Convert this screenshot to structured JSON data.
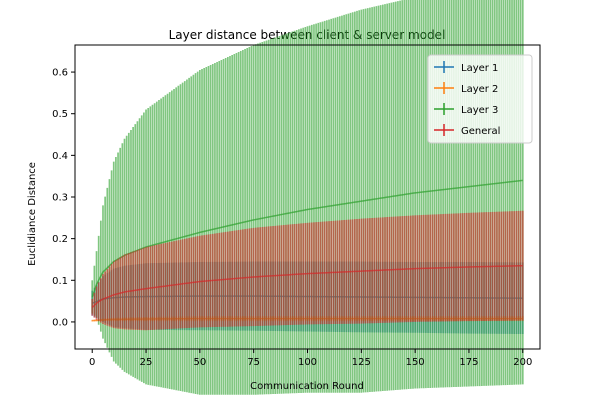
{
  "chart_data": {
    "type": "line",
    "title": "Layer distance between client & server model",
    "xlabel": "Communication Round",
    "ylabel": "Euclidiance Distance",
    "xlim": [
      -8,
      208
    ],
    "ylim": [
      -0.065,
      0.665
    ],
    "xticks": [
      0,
      25,
      50,
      75,
      100,
      125,
      150,
      175,
      200
    ],
    "yticks": [
      0.0,
      0.1,
      0.2,
      0.3,
      0.4,
      0.5,
      0.6
    ],
    "ytick_labels": [
      "0.0",
      "0.1",
      "0.2",
      "0.3",
      "0.4",
      "0.5",
      "0.6"
    ],
    "error_bars": true,
    "legend_position": "top-right",
    "series": [
      {
        "name": "Layer 1",
        "color": "#1f77b4",
        "x": [
          0,
          5,
          10,
          15,
          25,
          50,
          75,
          100,
          125,
          150,
          175,
          200
        ],
        "y": [
          0.045,
          0.055,
          0.058,
          0.06,
          0.061,
          0.062,
          0.062,
          0.061,
          0.06,
          0.059,
          0.058,
          0.057
        ],
        "err": [
          0.03,
          0.055,
          0.07,
          0.075,
          0.08,
          0.082,
          0.083,
          0.084,
          0.085,
          0.085,
          0.086,
          0.086
        ]
      },
      {
        "name": "Layer 2",
        "color": "#ff7f0e",
        "x": [
          0,
          5,
          10,
          25,
          50,
          75,
          100,
          125,
          150,
          175,
          200
        ],
        "y": [
          0.003,
          0.005,
          0.006,
          0.007,
          0.008,
          0.008,
          0.008,
          0.008,
          0.008,
          0.008,
          0.008
        ],
        "err": [
          0.002,
          0.003,
          0.004,
          0.005,
          0.006,
          0.006,
          0.006,
          0.006,
          0.006,
          0.006,
          0.006
        ]
      },
      {
        "name": "Layer 3",
        "color": "#2ca02c",
        "x": [
          0,
          2,
          5,
          10,
          15,
          25,
          50,
          75,
          100,
          125,
          150,
          175,
          200
        ],
        "y": [
          0.06,
          0.09,
          0.12,
          0.145,
          0.16,
          0.18,
          0.215,
          0.245,
          0.27,
          0.29,
          0.31,
          0.325,
          0.34
        ],
        "err": [
          0.04,
          0.08,
          0.16,
          0.24,
          0.28,
          0.33,
          0.39,
          0.42,
          0.44,
          0.46,
          0.47,
          0.48,
          0.49
        ]
      },
      {
        "name": "General",
        "color": "#d62728",
        "x": [
          0,
          2,
          5,
          10,
          15,
          25,
          50,
          75,
          100,
          125,
          150,
          175,
          200
        ],
        "y": [
          0.035,
          0.045,
          0.055,
          0.065,
          0.072,
          0.08,
          0.097,
          0.108,
          0.116,
          0.122,
          0.128,
          0.132,
          0.135
        ],
        "err": [
          0.02,
          0.04,
          0.06,
          0.08,
          0.09,
          0.1,
          0.11,
          0.118,
          0.122,
          0.126,
          0.128,
          0.13,
          0.132
        ]
      }
    ]
  }
}
